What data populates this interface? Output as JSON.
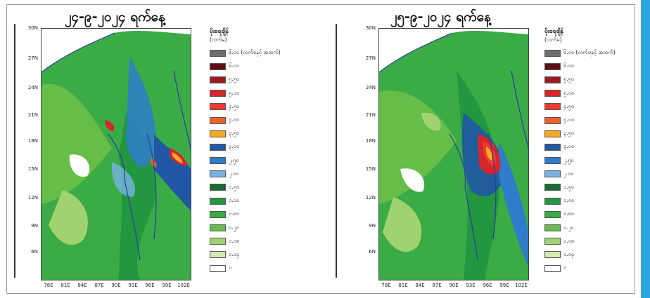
{
  "panels": [
    {
      "title": "၂၄-၉-၂၀၂၄ ရက်နေ့",
      "legend_title": "မိုးရေချိန်",
      "legend_unit": "(လက်မ)"
    },
    {
      "title": "၂၅-၉-၂၀၂၄ ရက်နေ့",
      "legend_title": "မိုးရေချိန်",
      "legend_unit": "(လက်မ)"
    }
  ],
  "legend_items": [
    {
      "label": "၆.၀၀ (လက်မနှင့် အထက်)",
      "color": "#6e6e6e"
    },
    {
      "label": "၆.၀၀",
      "color": "#5c0f12"
    },
    {
      "label": "၅.၅၀",
      "color": "#9b1c22"
    },
    {
      "label": "၅.၀၀",
      "color": "#d6262c"
    },
    {
      "label": "၄.၅၀",
      "color": "#ef3b2e"
    },
    {
      "label": "၄.၀၀",
      "color": "#f15f2a"
    },
    {
      "label": "၃.၅၀",
      "color": "#f7a823"
    },
    {
      "label": "၃.၀၀",
      "color": "#2157a5"
    },
    {
      "label": "၂.၅၀",
      "color": "#2f7ccb"
    },
    {
      "label": "၂.၀၀",
      "color": "#78b2e3"
    },
    {
      "label": "၁.၅၀",
      "color": "#186b32"
    },
    {
      "label": "၁.၀၀",
      "color": "#22973f"
    },
    {
      "label": "၀.၈၀",
      "color": "#3aab45"
    },
    {
      "label": "၀.၂၀",
      "color": "#66bd48"
    },
    {
      "label": "၀.၀၈",
      "color": "#a0d370"
    },
    {
      "label": "၀.၀၄",
      "color": "#d6ebb4"
    },
    {
      "label": "၀",
      "color": "#ffffff"
    }
  ],
  "lat_labels": [
    "30N",
    "27N",
    "24N",
    "21N",
    "18N",
    "15N",
    "12N",
    "9N",
    "6N"
  ],
  "lon_labels": [
    "78E",
    "81E",
    "84E",
    "87E",
    "90E",
    "93E",
    "96E",
    "99E",
    "102E"
  ],
  "colors": {
    "sea": "#ffffff",
    "coast": "#2b3aa6",
    "accent": "#29a8e0"
  }
}
